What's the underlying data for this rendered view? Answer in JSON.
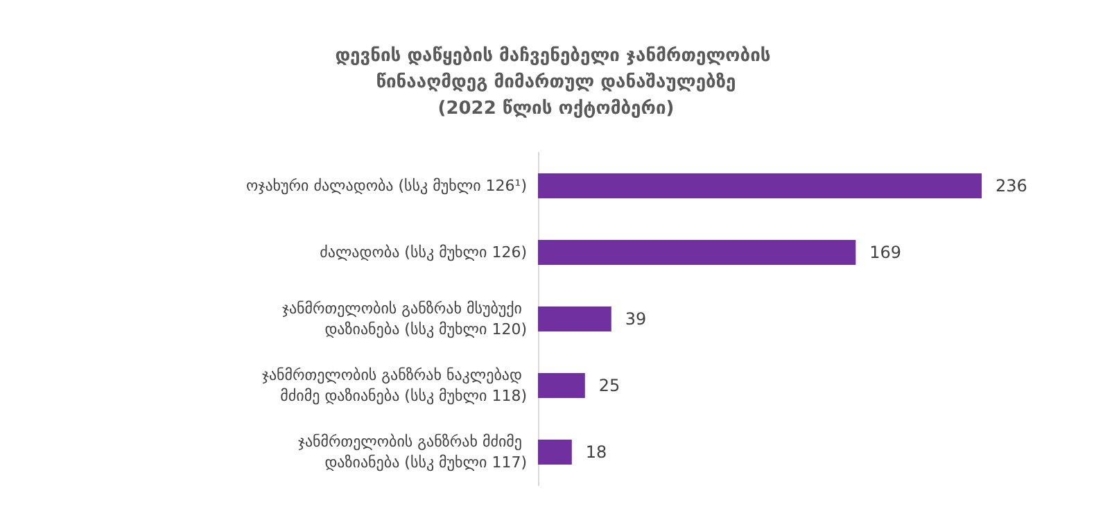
{
  "chart_data": {
    "type": "bar",
    "orientation": "horizontal",
    "title": "დევნის დაწყების მაჩვენებელი ჯანმრთელობის წინააღმდეგ მიმართულ დანაშაულებზე\n(2022 წლის ოქტომბერი)",
    "categories": [
      "ოჯახური ძალადობა (სსკ მუხლი 126¹)",
      "ძალადობა (სსკ მუხლი 126)",
      "ჯანმრთელობის განზრახ მსუბუქი დაზიანება (სსკ მუხლი 120)",
      "ჯანმრთელობის განზრახ ნაკლებად მძიმე დაზიანება (სსკ მუხლი 118)",
      "ჯანმრთელობის განზრახ მძიმე დაზიანება (სსკ მუხლი 117)"
    ],
    "values": [
      236,
      169,
      39,
      25,
      18
    ],
    "color": "#7030a0",
    "data_labels": true
  }
}
